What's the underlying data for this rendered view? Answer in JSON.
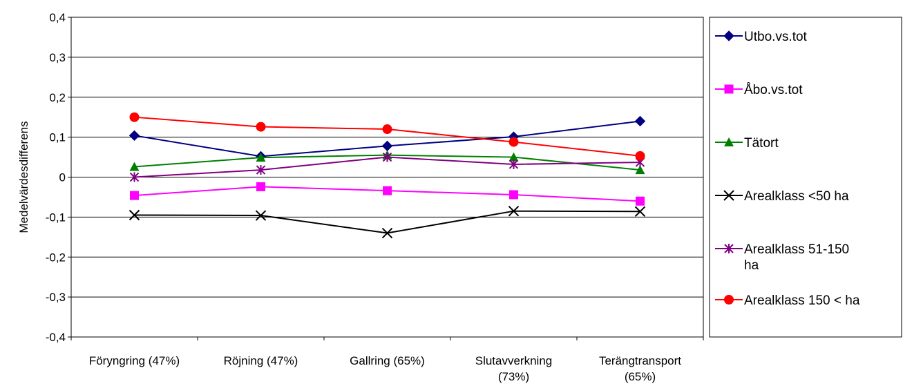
{
  "chart_data": {
    "type": "line",
    "ylabel": "Medelvärdesdifferens",
    "xlabel": "",
    "title": "",
    "ylim": [
      -0.4,
      0.4
    ],
    "yticks": [
      -0.4,
      -0.3,
      -0.2,
      -0.1,
      0,
      0.1,
      0.2,
      0.3,
      0.4
    ],
    "ytick_labels": [
      "-0,4",
      "-0,3",
      "-0,2",
      "-0,1",
      "0",
      "0,1",
      "0,2",
      "0,3",
      "0,4"
    ],
    "grid": true,
    "legend_position": "right",
    "categories": [
      [
        "Föryngring (47%)"
      ],
      [
        "Röjning (47%)"
      ],
      [
        "Gallring (65%)"
      ],
      [
        "Slutavverkning",
        "(73%)"
      ],
      [
        "Terängtransport",
        "(65%)"
      ]
    ],
    "series": [
      {
        "name": [
          "Utbo.vs.tot"
        ],
        "color": "#000080",
        "marker": "diamond",
        "values": [
          0.104,
          0.052,
          0.078,
          0.101,
          0.14
        ]
      },
      {
        "name": [
          "Åbo.vs.tot"
        ],
        "color": "#ff00ff",
        "marker": "square",
        "values": [
          -0.046,
          -0.024,
          -0.034,
          -0.044,
          -0.06
        ]
      },
      {
        "name": [
          "Tätort"
        ],
        "color": "#008000",
        "marker": "triangle",
        "values": [
          0.026,
          0.049,
          0.055,
          0.05,
          0.018
        ]
      },
      {
        "name": [
          "Arealklass <50 ha"
        ],
        "color": "#000000",
        "marker": "x",
        "values": [
          -0.095,
          -0.096,
          -0.14,
          -0.085,
          -0.086
        ]
      },
      {
        "name": [
          "Arealklass 51-150",
          "ha"
        ],
        "color": "#800080",
        "marker": "star",
        "values": [
          0.0,
          0.018,
          0.05,
          0.032,
          0.037
        ]
      },
      {
        "name": [
          "Arealklass 150 < ha"
        ],
        "color": "#ff0000",
        "marker": "circle",
        "values": [
          0.15,
          0.126,
          0.12,
          0.088,
          0.053
        ]
      }
    ]
  }
}
